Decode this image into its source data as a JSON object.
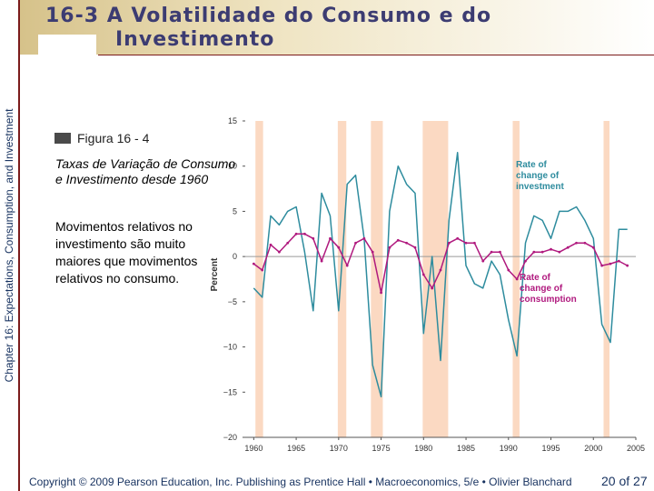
{
  "title": {
    "line1": "16-3 A Volatilidade do Consumo e do",
    "line2": "Investimento"
  },
  "side_label": "Chapter 16: Expectations, Consumption, and Investment",
  "figure": {
    "label": "Figura 16 - 4",
    "caption": "Taxas de Variação de Consumo e Investimento desde 1960",
    "description": "Movimentos relativos no investimento são muito maiores que movimentos relativos no consumo."
  },
  "footer": {
    "copyright": "Copyright © 2009 Pearson Education, Inc. Publishing as Prentice Hall • Macroeconomics, 5/e • Olivier Blanchard",
    "page": "20 of 27"
  },
  "colors": {
    "title": "#3c3c72",
    "investment": "#2e8c9e",
    "consumption": "#b0197e",
    "recession": "#fbd9c2",
    "footer": "#16315f"
  },
  "chart_data": {
    "type": "line",
    "title": "",
    "xlabel": "",
    "ylabel": "Percent",
    "xlim": [
      1959,
      2005
    ],
    "ylim": [
      -20,
      15
    ],
    "yticks": [
      15,
      10,
      5,
      0,
      -5,
      -10,
      -15,
      -20
    ],
    "yticklabels": [
      "15",
      "10",
      "5",
      "0",
      "−5",
      "−10",
      "−15",
      "−20"
    ],
    "xticks": [
      1960,
      1965,
      1970,
      1975,
      1980,
      1985,
      1990,
      1995,
      2000,
      2005
    ],
    "xticklabels": [
      "1960",
      "1965",
      "1970",
      "1975",
      "1980",
      "1985",
      "1990",
      "1995",
      "2000",
      "2005"
    ],
    "recessions": [
      [
        1960.2,
        1961.1
      ],
      [
        1969.9,
        1970.9
      ],
      [
        1973.8,
        1975.2
      ],
      [
        1979.9,
        1982.9
      ],
      [
        1990.5,
        1991.3
      ],
      [
        2001.2,
        2001.9
      ]
    ],
    "series": [
      {
        "name": "Rate of change of investment",
        "label": "Rate of\nchange of\ninvestment",
        "x": [
          1960,
          1961,
          1962,
          1963,
          1964,
          1965,
          1966,
          1967,
          1968,
          1969,
          1970,
          1971,
          1972,
          1973,
          1974,
          1975,
          1976,
          1977,
          1978,
          1979,
          1980,
          1981,
          1982,
          1983,
          1984,
          1985,
          1986,
          1987,
          1988,
          1989,
          1990,
          1991,
          1992,
          1993,
          1994,
          1995,
          1996,
          1997,
          1998,
          1999,
          2000,
          2001,
          2002,
          2003,
          2004
        ],
        "values": [
          -3.5,
          -4.5,
          4.5,
          3.5,
          5.0,
          5.5,
          0.5,
          -6.0,
          7.0,
          4.5,
          -6.0,
          8.0,
          9.0,
          2.0,
          -12.0,
          -15.5,
          5.0,
          10.0,
          8.0,
          7.0,
          -8.5,
          0.0,
          -11.5,
          4.0,
          11.5,
          -1.0,
          -3.0,
          -3.5,
          -0.5,
          -2.0,
          -7.0,
          -11.0,
          1.5,
          4.5,
          4.0,
          2.0,
          5.0,
          5.0,
          5.5,
          4.0,
          2.0,
          -7.5,
          -9.5,
          3.0,
          3.0
        ]
      },
      {
        "name": "Rate of change of consumption",
        "label": "Rate of\nchange of\nconsumption",
        "x": [
          1960,
          1961,
          1962,
          1963,
          1964,
          1965,
          1966,
          1967,
          1968,
          1969,
          1970,
          1971,
          1972,
          1973,
          1974,
          1975,
          1976,
          1977,
          1978,
          1979,
          1980,
          1981,
          1982,
          1983,
          1984,
          1985,
          1986,
          1987,
          1988,
          1989,
          1990,
          1991,
          1992,
          1993,
          1994,
          1995,
          1996,
          1997,
          1998,
          1999,
          2000,
          2001,
          2002,
          2003,
          2004
        ],
        "values": [
          -0.8,
          -1.5,
          1.3,
          0.5,
          1.5,
          2.5,
          2.5,
          2.0,
          -0.5,
          2.0,
          1.0,
          -1.0,
          1.5,
          2.0,
          0.5,
          -4.0,
          1.0,
          1.8,
          1.5,
          1.0,
          -2.0,
          -3.5,
          -1.5,
          1.5,
          2.0,
          1.5,
          1.5,
          -0.5,
          0.5,
          0.5,
          -1.5,
          -2.5,
          -0.5,
          0.5,
          0.5,
          0.8,
          0.5,
          1.0,
          1.5,
          1.5,
          1.0,
          -1.0,
          -0.8,
          -0.5,
          -1.0
        ]
      }
    ]
  }
}
